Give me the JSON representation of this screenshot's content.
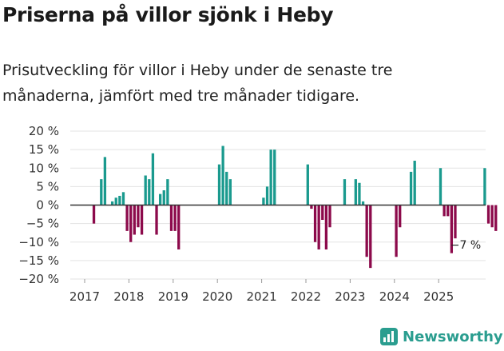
{
  "title": "Priserna på villor sjönk i Heby",
  "subtitle": "Prisutveckling för villor i Heby under de senaste tre månaderna, jämfört med tre månader tidigare.",
  "brand": "Newsworthy",
  "colors": {
    "positive": "#1a9a8e",
    "negative": "#8c0a4b",
    "grid": "#e3e3e3",
    "zero": "#333333",
    "brand": "#2a9d8f"
  },
  "chart_data": {
    "type": "bar",
    "x_start": "2017-01",
    "x_unit": "month",
    "xlabel": "",
    "ylabel": "",
    "ylim": [
      -20,
      20
    ],
    "y_ticks": [
      20,
      15,
      10,
      5,
      0,
      -5,
      -10,
      -15,
      -20
    ],
    "y_tick_labels": [
      "20 %",
      "15 %",
      "10 %",
      "5 %",
      "0 %",
      "−5 %",
      "−10 %",
      "−15 %",
      "−20 %"
    ],
    "x_ticks": [
      "2017",
      "2018",
      "2019",
      "2020",
      "2021",
      "2022",
      "2023",
      "2024",
      "2025"
    ],
    "annotation": "−7 %",
    "values": [
      null,
      null,
      -5,
      null,
      7,
      13,
      null,
      1,
      2,
      2.5,
      3.5,
      -7,
      -10,
      -8,
      -6,
      -8,
      8,
      7,
      14,
      -8,
      3,
      4,
      7,
      -7,
      -7,
      -12,
      null,
      null,
      null,
      null,
      null,
      null,
      null,
      null,
      null,
      null,
      11,
      16,
      9,
      7,
      null,
      null,
      null,
      null,
      null,
      null,
      null,
      null,
      2,
      5,
      15,
      15,
      null,
      null,
      null,
      null,
      null,
      null,
      null,
      null,
      11,
      -1,
      -10,
      -12,
      -4,
      -12,
      -6,
      null,
      null,
      null,
      7,
      null,
      null,
      7,
      6,
      1,
      -14,
      -17,
      null,
      null,
      null,
      null,
      null,
      null,
      -14,
      -6,
      null,
      null,
      9,
      12,
      null,
      null,
      null,
      null,
      null,
      null,
      10,
      -3,
      -3,
      -13,
      -9,
      null,
      null,
      null,
      null,
      null,
      null,
      null,
      10,
      -5,
      -6,
      -7
    ]
  }
}
